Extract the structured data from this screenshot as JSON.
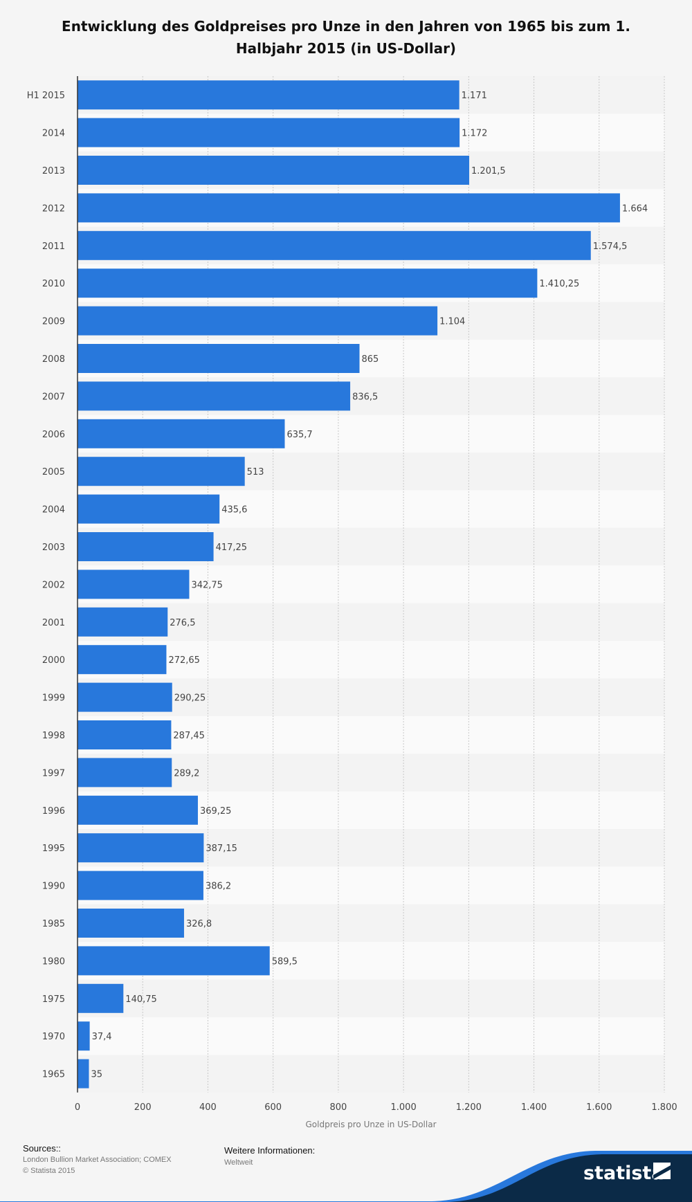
{
  "chart_data": {
    "type": "bar",
    "orientation": "horizontal",
    "title": "Entwicklung des Goldpreises pro Unze in den Jahren von 1965 bis zum 1. Halbjahr 2015 (in US-Dollar)",
    "xlabel": "Goldpreis pro Unze in US-Dollar",
    "ylabel": "",
    "xlim": [
      0,
      1800
    ],
    "xticks": [
      0,
      200,
      400,
      600,
      800,
      1000,
      1200,
      1400,
      1600,
      1800
    ],
    "xtick_labels": [
      "0",
      "200",
      "400",
      "600",
      "800",
      "1.000",
      "1.200",
      "1.400",
      "1.600",
      "1.800"
    ],
    "grid": true,
    "bar_color": "#2878dc",
    "categories": [
      "H1 2015",
      "2014",
      "2013",
      "2012",
      "2011",
      "2010",
      "2009",
      "2008",
      "2007",
      "2006",
      "2005",
      "2004",
      "2003",
      "2002",
      "2001",
      "2000",
      "1999",
      "1998",
      "1997",
      "1996",
      "1995",
      "1990",
      "1985",
      "1980",
      "1975",
      "1970",
      "1965"
    ],
    "values": [
      1171,
      1172,
      1201.5,
      1664,
      1574.5,
      1410.25,
      1104,
      865,
      836.5,
      635.7,
      513,
      435.6,
      417.25,
      342.75,
      276.5,
      272.65,
      290.25,
      287.45,
      289.2,
      369.25,
      387.15,
      386.2,
      326.8,
      589.5,
      140.75,
      37.4,
      35
    ],
    "value_labels": [
      "1.171",
      "1.172",
      "1.201,5",
      "1.664",
      "1.574,5",
      "1.410,25",
      "1.104",
      "865",
      "836,5",
      "635,7",
      "513",
      "435,6",
      "417,25",
      "342,75",
      "276,5",
      "272,65",
      "290,25",
      "287,45",
      "289,2",
      "369,25",
      "387,15",
      "386,2",
      "326,8",
      "589,5",
      "140,75",
      "37,4",
      "35"
    ]
  },
  "footer": {
    "sources_label": "Sources::",
    "sources_text": "London Bullion Market Association; COMEX",
    "copyright": "© Statista 2015",
    "info_label": "Weitere Informationen:",
    "info_text": "Weltweit"
  },
  "brand": {
    "name": "statista",
    "dark_color": "#0b2a47",
    "accent_color": "#2878dc"
  }
}
